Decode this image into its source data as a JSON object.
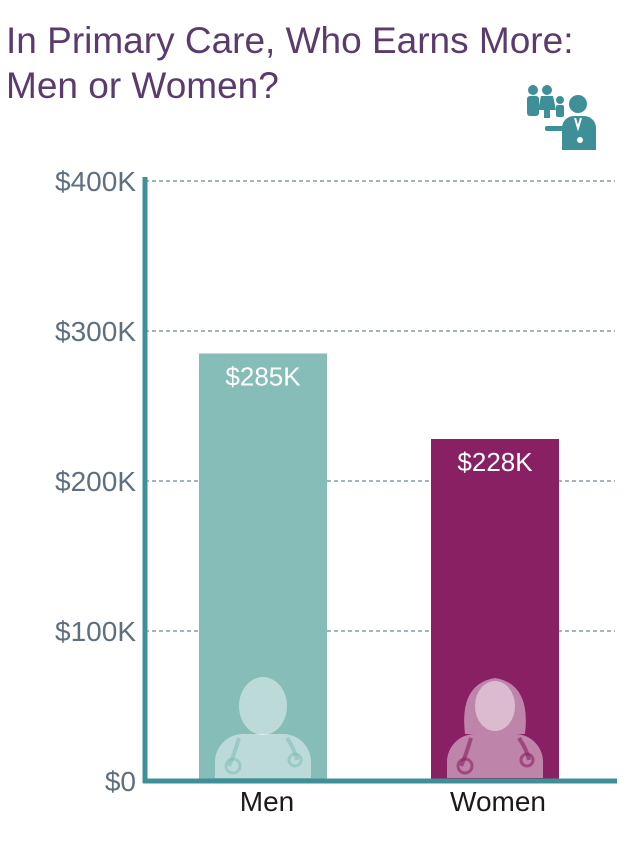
{
  "title_lines": [
    "In Primary Care, Who Earns More:",
    "Men or Women?"
  ],
  "icons": {
    "header": "doctor-with-family-icon",
    "bar_men": "male-doctor-icon",
    "bar_women": "female-doctor-icon"
  },
  "colors": {
    "title": "#5b3a6e",
    "axis": "#3f8f98",
    "men": "#86bdb8",
    "women": "#8a2064",
    "tick": "#5e6f80",
    "grid": "#6f8794"
  },
  "chart_data": {
    "type": "bar",
    "title": "In Primary Care, Who Earns More: Men or Women?",
    "categories": [
      "Men",
      "Women"
    ],
    "values": [
      285,
      228
    ],
    "data_labels": [
      "$285K",
      "$228K"
    ],
    "unit": "thousand USD",
    "ylim": [
      0,
      400
    ],
    "yticks": [
      0,
      100,
      200,
      300,
      400
    ],
    "ytick_labels": [
      "$0",
      "$100K",
      "$200K",
      "$300K",
      "$400K"
    ],
    "xlabel": "",
    "ylabel": "",
    "grid": true,
    "legend": "none"
  }
}
